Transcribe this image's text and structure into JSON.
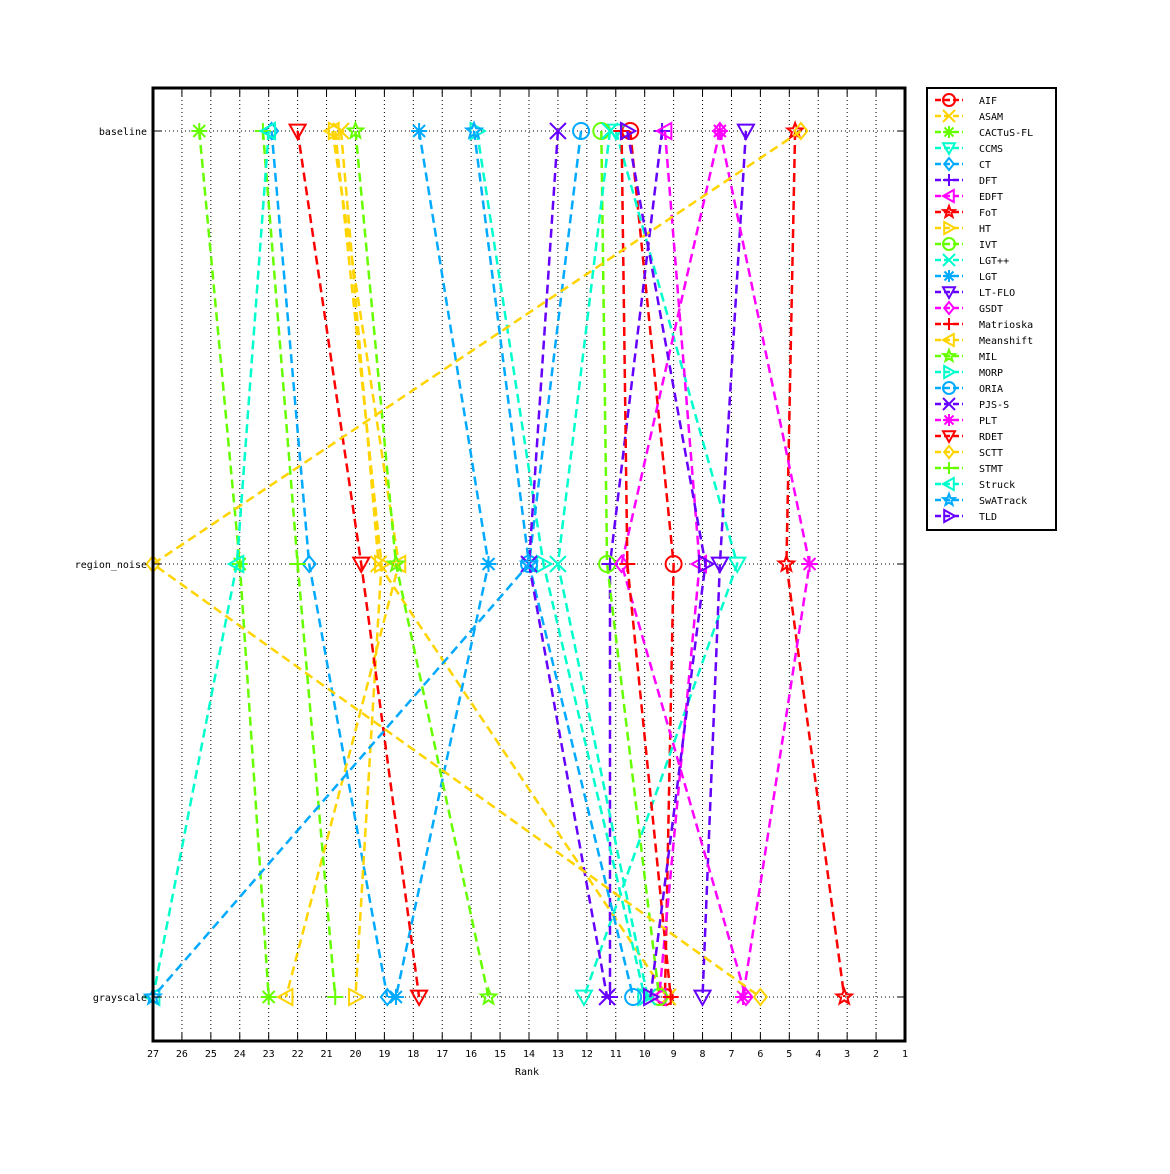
{
  "chart_data": {
    "type": "line",
    "xlabel": "Rank",
    "ylabel": "",
    "title": "",
    "xlim": [
      27,
      1
    ],
    "x_reversed": true,
    "x_ticks": [
      27,
      26,
      25,
      24,
      23,
      22,
      21,
      20,
      19,
      18,
      17,
      16,
      15,
      14,
      13,
      12,
      11,
      10,
      9,
      8,
      7,
      6,
      5,
      4,
      3,
      2,
      1
    ],
    "categories": [
      "baseline",
      "region_noise",
      "grayscale"
    ],
    "grid": "x-dotted",
    "legend_position": "outside-top-right",
    "series": [
      {
        "name": "AIF",
        "color": "#ff0000",
        "marker": "circle",
        "values": [
          10.5,
          9.0,
          9.3
        ]
      },
      {
        "name": "ASAM",
        "color": "#ffd400",
        "marker": "x",
        "values": [
          20.5,
          19.2,
          9.2
        ]
      },
      {
        "name": "CACTuS-FL",
        "color": "#66ff00",
        "marker": "asterisk",
        "values": [
          25.4,
          24.0,
          23.0
        ]
      },
      {
        "name": "CCMS",
        "color": "#00ffcc",
        "marker": "triangle-down",
        "values": [
          11.0,
          6.8,
          12.1
        ]
      },
      {
        "name": "CT",
        "color": "#00aaff",
        "marker": "diamond",
        "values": [
          22.9,
          21.6,
          18.9
        ]
      },
      {
        "name": "DFT",
        "color": "#6600ff",
        "marker": "plus",
        "values": [
          9.4,
          11.2,
          11.2
        ]
      },
      {
        "name": "EDFT",
        "color": "#ff00ff",
        "marker": "triangle-left",
        "values": [
          9.3,
          8.1,
          9.5
        ]
      },
      {
        "name": "FoT",
        "color": "#ff0000",
        "marker": "star",
        "values": [
          4.8,
          5.1,
          3.1
        ]
      },
      {
        "name": "HT",
        "color": "#ffd400",
        "marker": "triangle-right",
        "values": [
          20.7,
          19.1,
          20.0
        ]
      },
      {
        "name": "IVT",
        "color": "#66ff00",
        "marker": "circle",
        "values": [
          11.5,
          11.3,
          9.5
        ]
      },
      {
        "name": "LGT++",
        "color": "#00ffcc",
        "marker": "x",
        "values": [
          11.2,
          13.0,
          9.9
        ]
      },
      {
        "name": "LGT",
        "color": "#00aaff",
        "marker": "asterisk",
        "values": [
          17.8,
          15.4,
          18.6
        ]
      },
      {
        "name": "LT-FLO",
        "color": "#6600ff",
        "marker": "triangle-down",
        "values": [
          6.5,
          7.4,
          8.0
        ]
      },
      {
        "name": "GSDT",
        "color": "#ff00ff",
        "marker": "diamond",
        "values": [
          7.4,
          10.8,
          6.5
        ]
      },
      {
        "name": "Matrioska",
        "color": "#ff0000",
        "marker": "plus",
        "values": [
          10.8,
          10.6,
          9.1
        ]
      },
      {
        "name": "Meanshift",
        "color": "#ffd400",
        "marker": "triangle-left",
        "values": [
          20.8,
          18.5,
          22.4
        ]
      },
      {
        "name": "MIL",
        "color": "#66ff00",
        "marker": "star",
        "values": [
          20.0,
          18.6,
          15.4
        ]
      },
      {
        "name": "MORP",
        "color": "#00ffcc",
        "marker": "triangle-right",
        "values": [
          15.8,
          13.5,
          10.0
        ]
      },
      {
        "name": "ORIA",
        "color": "#00aaff",
        "marker": "circle",
        "values": [
          12.2,
          14.0,
          10.4
        ]
      },
      {
        "name": "PJS-S",
        "color": "#6600ff",
        "marker": "x",
        "values": [
          13.0,
          14.0,
          11.3
        ]
      },
      {
        "name": "PLT",
        "color": "#ff00ff",
        "marker": "asterisk",
        "values": [
          7.4,
          4.3,
          6.6
        ]
      },
      {
        "name": "RDET",
        "color": "#ff0000",
        "marker": "triangle-down",
        "values": [
          22.0,
          19.8,
          17.8
        ]
      },
      {
        "name": "SCTT",
        "color": "#ffd400",
        "marker": "diamond",
        "values": [
          4.6,
          27.0,
          6.0
        ]
      },
      {
        "name": "STMT",
        "color": "#66ff00",
        "marker": "plus",
        "values": [
          23.2,
          22.0,
          20.7
        ]
      },
      {
        "name": "Struck",
        "color": "#00ffcc",
        "marker": "triangle-left",
        "values": [
          23.0,
          24.1,
          27.0
        ]
      },
      {
        "name": "SwATrack",
        "color": "#00aaff",
        "marker": "star",
        "values": [
          15.9,
          14.0,
          27.0
        ]
      },
      {
        "name": "TLD",
        "color": "#6600ff",
        "marker": "triangle-right",
        "values": [
          10.6,
          7.9,
          9.8
        ]
      }
    ]
  }
}
